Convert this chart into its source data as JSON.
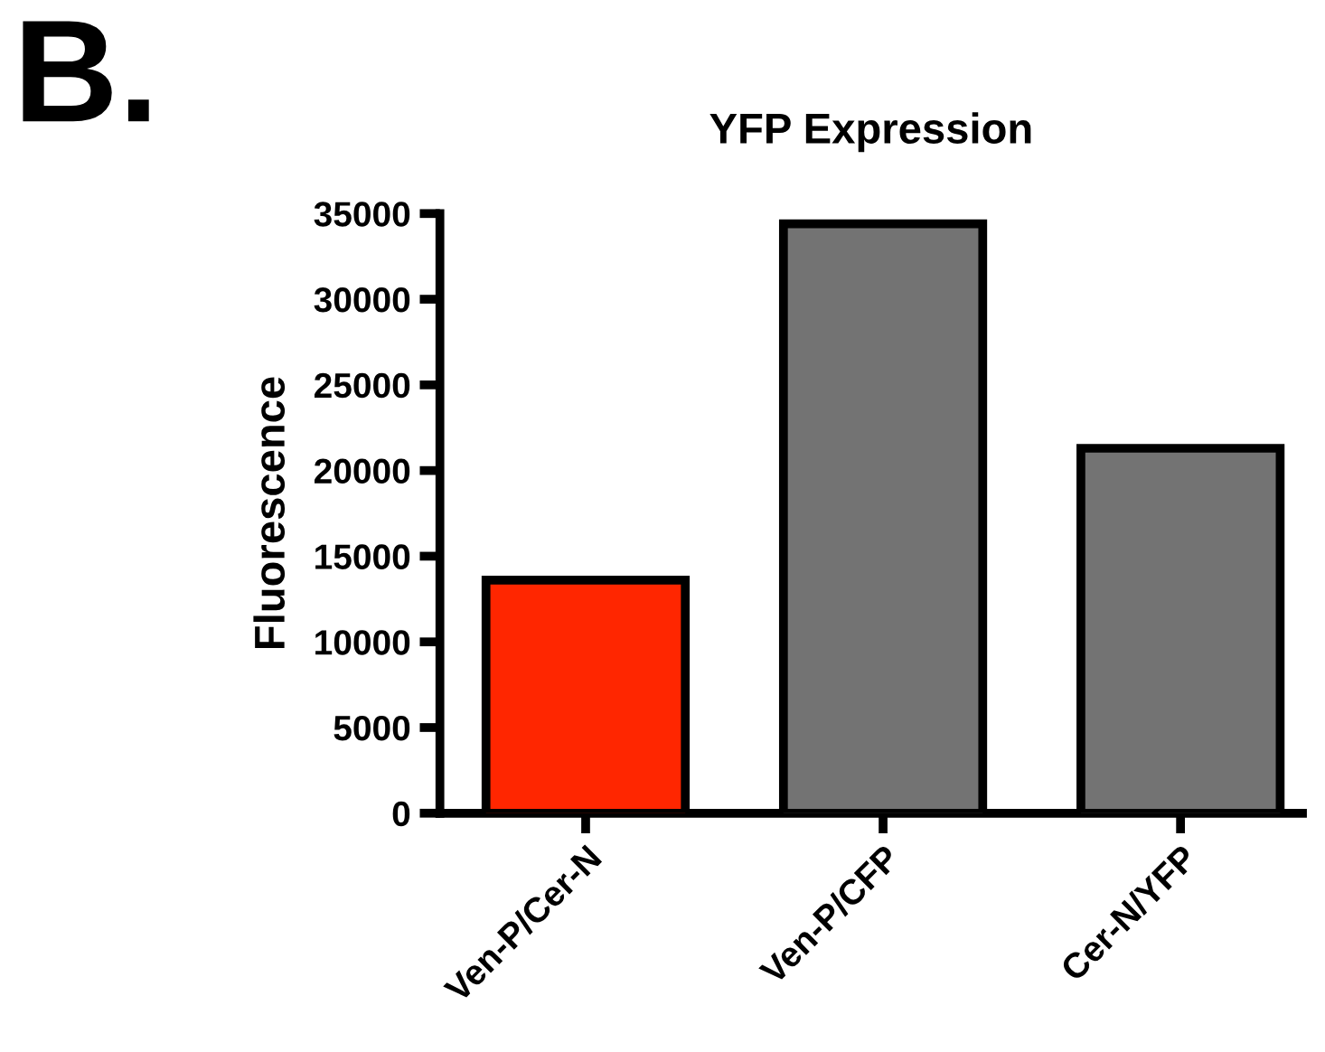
{
  "chart_data": {
    "type": "bar",
    "title": "YFP Expression",
    "ylabel": "Fluorescence",
    "categories": [
      "Ven-P/Cer-N",
      "Ven-P/CFP",
      "Cer-N/YFP"
    ],
    "values": [
      13600,
      34400,
      21300
    ],
    "colors": [
      "#ff2600",
      "#737373",
      "#737373"
    ],
    "ylim": [
      0,
      35000
    ],
    "yticks": [
      0,
      5000,
      10000,
      15000,
      20000,
      25000,
      30000,
      35000
    ],
    "grid": false,
    "legend": false,
    "annotations": [
      "B."
    ]
  }
}
